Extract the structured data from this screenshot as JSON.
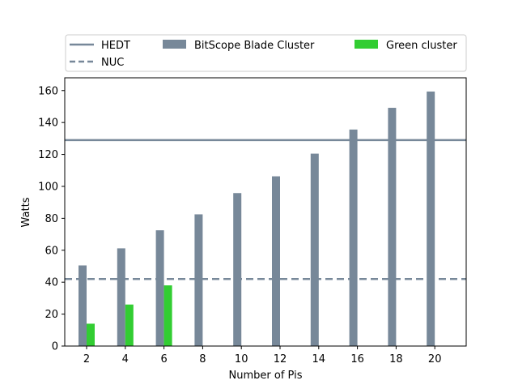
{
  "chart_data": {
    "type": "bar",
    "xlabel": "Number of Pis",
    "ylabel": "Watts",
    "categories": [
      "2",
      "4",
      "6",
      "8",
      "10",
      "12",
      "14",
      "16",
      "18",
      "20"
    ],
    "ylim": [
      0,
      168
    ],
    "yticks": [
      "0",
      "20",
      "40",
      "60",
      "80",
      "100",
      "120",
      "140",
      "160"
    ],
    "grid": false,
    "legend_position": "top",
    "series": [
      {
        "name": "BitScope Blade Cluster",
        "kind": "bar",
        "color": "#778899",
        "values": [
          50.5,
          61.2,
          72.5,
          82.5,
          95.8,
          106.3,
          120.5,
          135.6,
          149.2,
          159.4
        ]
      },
      {
        "name": "Green cluster",
        "kind": "bar",
        "color": "#32cd32",
        "values": [
          14.0,
          26.0,
          38.0,
          null,
          null,
          null,
          null,
          null,
          null,
          null
        ]
      }
    ],
    "reference_lines": [
      {
        "name": "HEDT",
        "y": 129,
        "color": "#778899",
        "style": "solid"
      },
      {
        "name": "NUC",
        "y": 42,
        "color": "#778899",
        "style": "dashed"
      }
    ]
  }
}
